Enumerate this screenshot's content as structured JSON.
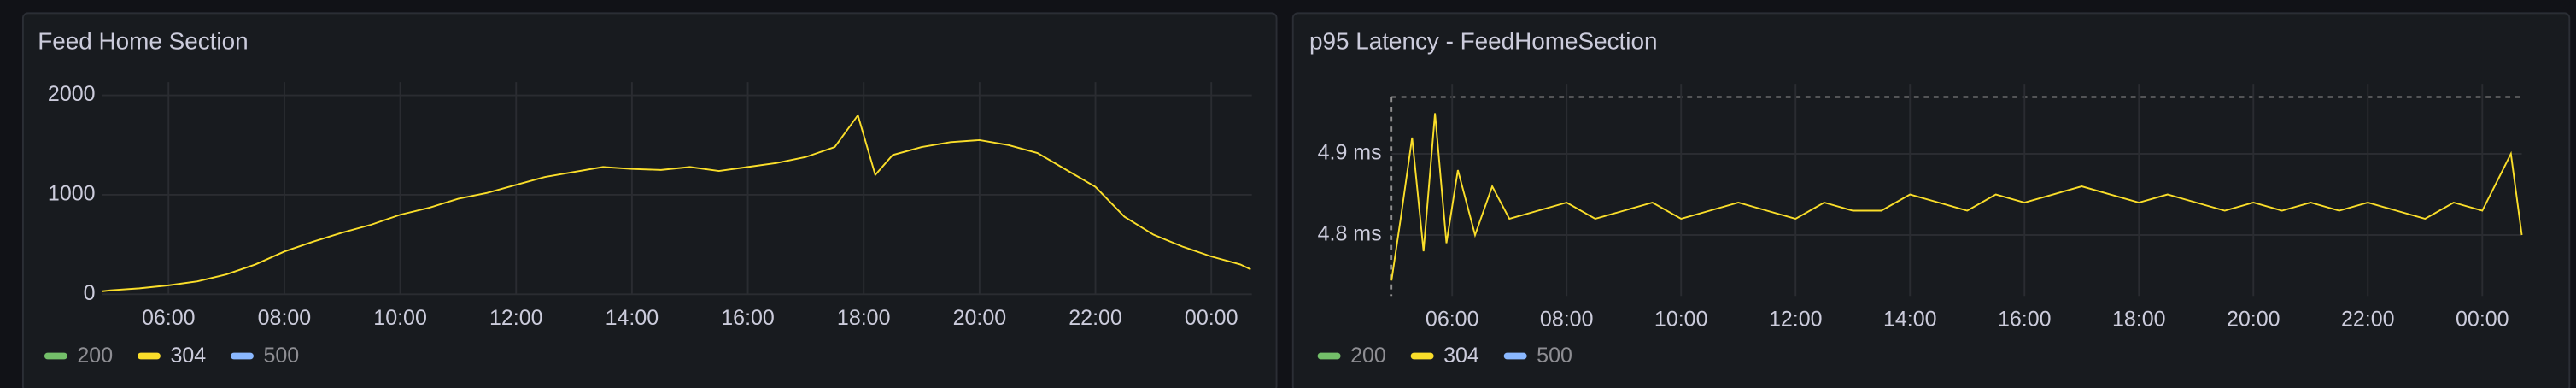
{
  "chart_data": [
    {
      "type": "line",
      "title": "Feed Home Section",
      "x": [
        4.85,
        5,
        5.5,
        6,
        6.5,
        7,
        7.5,
        8,
        8.5,
        9,
        9.5,
        10,
        10.5,
        11,
        11.5,
        12,
        12.5,
        13,
        13.5,
        14,
        14.5,
        15,
        15.5,
        16,
        16.5,
        17,
        17.5,
        17.9,
        18.2,
        18.5,
        19,
        19.5,
        20,
        20.5,
        21,
        21.5,
        22,
        22.5,
        23,
        23.5,
        24,
        24.5,
        24.68
      ],
      "series": [
        {
          "name": "200",
          "color": "#73bf69",
          "values": [
            null,
            null,
            null,
            null,
            null,
            null,
            null,
            null,
            null,
            null,
            null,
            null,
            null,
            null,
            null,
            null,
            null,
            null,
            null,
            null,
            null,
            null,
            null,
            null,
            null,
            null,
            null,
            null,
            null,
            null,
            null,
            null,
            null,
            null,
            null,
            null,
            null,
            null,
            null,
            null,
            null,
            null,
            null
          ]
        },
        {
          "name": "304",
          "color": "#fade2a",
          "values": [
            30,
            40,
            60,
            90,
            130,
            200,
            300,
            430,
            530,
            620,
            700,
            800,
            870,
            960,
            1020,
            1100,
            1180,
            1230,
            1280,
            1260,
            1250,
            1280,
            1240,
            1280,
            1320,
            1380,
            1480,
            1800,
            1200,
            1400,
            1480,
            1530,
            1550,
            1500,
            1420,
            1250,
            1080,
            780,
            600,
            480,
            380,
            300,
            250
          ]
        },
        {
          "name": "500",
          "color": "#8ab8ff",
          "values": [
            null,
            null,
            null,
            null,
            null,
            null,
            null,
            null,
            null,
            null,
            null,
            null,
            null,
            null,
            null,
            null,
            null,
            null,
            null,
            null,
            null,
            null,
            null,
            null,
            null,
            null,
            null,
            null,
            null,
            null,
            null,
            null,
            null,
            null,
            null,
            null,
            null,
            null,
            null,
            null,
            null,
            null,
            null
          ]
        }
      ],
      "xlim": [
        4.85,
        24.7
      ],
      "xticks": [
        {
          "value": 6,
          "label": "06:00"
        },
        {
          "value": 8,
          "label": "08:00"
        },
        {
          "value": 10,
          "label": "10:00"
        },
        {
          "value": 12,
          "label": "12:00"
        },
        {
          "value": 14,
          "label": "14:00"
        },
        {
          "value": 16,
          "label": "16:00"
        },
        {
          "value": 18,
          "label": "18:00"
        },
        {
          "value": 20,
          "label": "20:00"
        },
        {
          "value": 22,
          "label": "22:00"
        },
        {
          "value": 24,
          "label": "00:00"
        }
      ],
      "ylim": [
        0,
        2000
      ],
      "yticks": [
        0,
        1000,
        2000
      ],
      "grid": true
    },
    {
      "type": "line",
      "title": "p95 Latency - FeedHomeSection",
      "x": [
        4.94,
        5.1,
        5.3,
        5.5,
        5.7,
        5.9,
        6.1,
        6.4,
        6.7,
        7,
        7.5,
        8,
        8.5,
        9,
        9.5,
        10,
        10.5,
        11,
        11.5,
        12,
        12.5,
        13,
        13.5,
        14,
        14.5,
        15,
        15.5,
        16,
        16.5,
        17,
        17.5,
        18,
        18.5,
        19,
        19.5,
        20,
        20.5,
        21,
        21.5,
        22,
        22.5,
        23,
        23.5,
        24,
        24.5,
        24.69
      ],
      "series": [
        {
          "name": "200",
          "color": "#73bf69",
          "values": [
            null,
            null,
            null,
            null,
            null,
            null,
            null,
            null,
            null,
            null,
            null,
            null,
            null,
            null,
            null,
            null,
            null,
            null,
            null,
            null,
            null,
            null,
            null,
            null,
            null,
            null,
            null,
            null,
            null,
            null,
            null,
            null,
            null,
            null,
            null,
            null,
            null,
            null,
            null,
            null,
            null,
            null,
            null,
            null,
            null,
            null
          ]
        },
        {
          "name": "304",
          "color": "#fade2a",
          "values": [
            4.744,
            4.82,
            4.92,
            4.78,
            4.95,
            4.79,
            4.88,
            4.8,
            4.86,
            4.82,
            4.83,
            4.84,
            4.82,
            4.83,
            4.84,
            4.82,
            4.83,
            4.84,
            4.83,
            4.82,
            4.84,
            4.83,
            4.83,
            4.85,
            4.84,
            4.83,
            4.85,
            4.84,
            4.85,
            4.86,
            4.85,
            4.84,
            4.85,
            4.84,
            4.83,
            4.84,
            4.83,
            4.84,
            4.83,
            4.84,
            4.83,
            4.82,
            4.84,
            4.83,
            4.9,
            4.8
          ]
        },
        {
          "name": "500",
          "color": "#8ab8ff",
          "values": [
            null,
            null,
            null,
            null,
            null,
            null,
            null,
            null,
            null,
            null,
            null,
            null,
            null,
            null,
            null,
            null,
            null,
            null,
            null,
            null,
            null,
            null,
            null,
            null,
            null,
            null,
            null,
            null,
            null,
            null,
            null,
            null,
            null,
            null,
            null,
            null,
            null,
            null,
            null,
            null,
            null,
            null,
            null,
            null,
            null,
            null
          ]
        }
      ],
      "xlim": [
        4.94,
        24.69
      ],
      "xticks": [
        {
          "value": 6,
          "label": "06:00"
        },
        {
          "value": 8,
          "label": "08:00"
        },
        {
          "value": 10,
          "label": "10:00"
        },
        {
          "value": 12,
          "label": "12:00"
        },
        {
          "value": 14,
          "label": "14:00"
        },
        {
          "value": 16,
          "label": "16:00"
        },
        {
          "value": 18,
          "label": "18:00"
        },
        {
          "value": 20,
          "label": "20:00"
        },
        {
          "value": 22,
          "label": "22:00"
        },
        {
          "value": 24,
          "label": "00:00"
        }
      ],
      "ylim": [
        4.725,
        4.97
      ],
      "yticks": [
        {
          "value": 4.8,
          "label": "4.8 ms"
        },
        {
          "value": 4.9,
          "label": "4.9 ms"
        }
      ],
      "grid": true
    }
  ]
}
